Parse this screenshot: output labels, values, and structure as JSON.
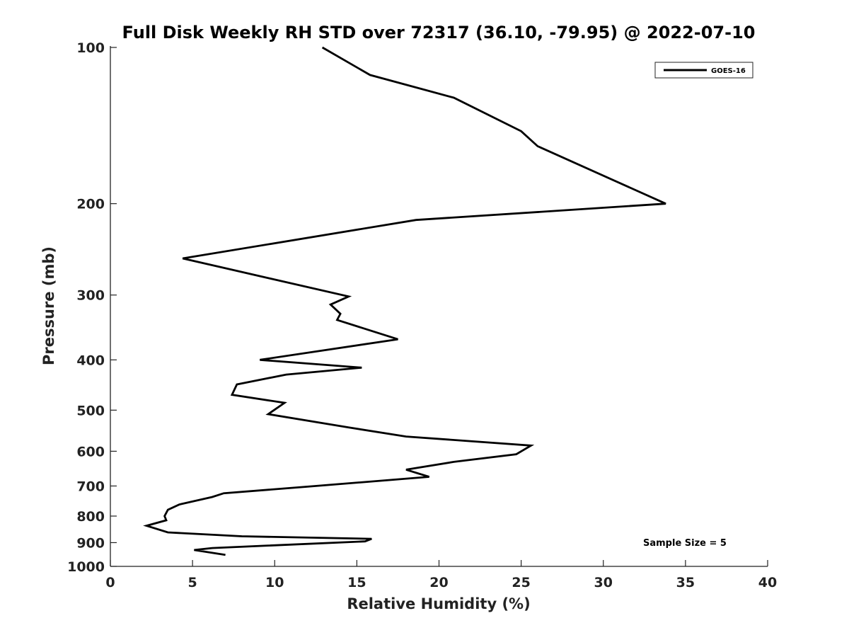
{
  "chart_data": {
    "type": "line",
    "title": "Full Disk Weekly RH STD over 72317 (36.10, -79.95) @ 2022-07-10",
    "xlabel": "Relative Humidity (%)",
    "ylabel": "Pressure (mb)",
    "xlim": [
      0,
      40
    ],
    "ylim": [
      100,
      1000
    ],
    "yscale": "log",
    "y_reversed": true,
    "xticks": [
      0,
      5,
      10,
      15,
      20,
      25,
      30,
      35,
      40
    ],
    "xtick_labels": [
      "0",
      "5",
      "10",
      "15",
      "20",
      "25",
      "30",
      "35",
      "40"
    ],
    "yticks": [
      100,
      200,
      300,
      400,
      500,
      600,
      700,
      800,
      900,
      1000
    ],
    "ytick_labels": [
      "100",
      "200",
      "300",
      "400",
      "500",
      "600",
      "700",
      "800",
      "900",
      "1000"
    ],
    "grid": false,
    "legend_position": "top-right",
    "annotation": "Sample Size = 5",
    "series": [
      {
        "name": "GOES-16",
        "color": "#000000",
        "x": [
          12.9,
          15.8,
          20.9,
          25.0,
          26.0,
          33.8,
          18.6,
          4.4,
          14.5,
          13.4,
          14.0,
          13.8,
          17.5,
          9.1,
          15.3,
          10.7,
          7.7,
          7.4,
          10.6,
          9.6,
          14.5,
          18.0,
          25.6,
          24.7,
          20.9,
          18.0,
          19.4,
          12.0,
          6.9,
          6.2,
          4.2,
          3.5,
          3.3,
          3.4,
          2.2,
          3.5,
          8.0,
          15.9,
          15.5,
          6.2,
          5.1,
          7.0
        ],
        "y": [
          100,
          113,
          125,
          145,
          155,
          200,
          215,
          255,
          302,
          313,
          326,
          335,
          365,
          400,
          414,
          427,
          446,
          467,
          484,
          509,
          540,
          562,
          585,
          608,
          629,
          651,
          672,
          702,
          723,
          735,
          760,
          778,
          800,
          815,
          835,
          860,
          875,
          885,
          895,
          922,
          930,
          950
        ]
      }
    ]
  }
}
